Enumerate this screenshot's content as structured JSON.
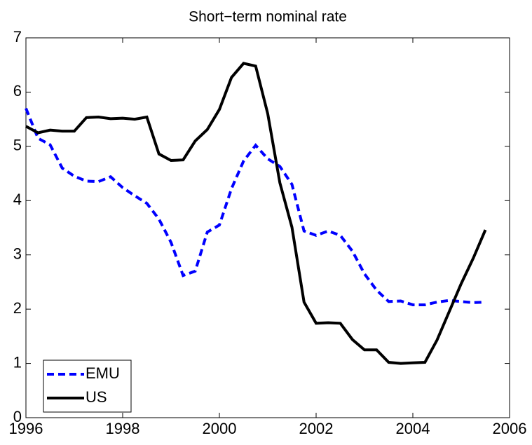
{
  "chart_data": {
    "type": "line",
    "title": "Short−term nominal rate",
    "x": [
      1996,
      1996.25,
      1996.5,
      1996.75,
      1997,
      1997.25,
      1997.5,
      1997.75,
      1998,
      1998.25,
      1998.5,
      1998.75,
      1999,
      1999.25,
      1999.5,
      1999.75,
      2000,
      2000.25,
      2000.5,
      2000.75,
      2001,
      2001.25,
      2001.5,
      2001.75,
      2002,
      2002.25,
      2002.5,
      2002.75,
      2003,
      2003.25,
      2003.5,
      2003.75,
      2004,
      2004.25,
      2004.5,
      2004.75,
      2005,
      2005.25,
      2005.5
    ],
    "series": [
      {
        "name": "EMU",
        "color": "#0000ff",
        "dash": true,
        "values": [
          5.7,
          5.15,
          5.03,
          4.6,
          4.45,
          4.36,
          4.35,
          4.44,
          4.24,
          4.09,
          3.95,
          3.66,
          3.23,
          2.62,
          2.7,
          3.42,
          3.55,
          4.22,
          4.73,
          5.02,
          4.77,
          4.63,
          4.3,
          3.44,
          3.36,
          3.44,
          3.36,
          3.07,
          2.65,
          2.35,
          2.14,
          2.15,
          2.08,
          2.08,
          2.13,
          2.16,
          2.14,
          2.12,
          2.13
        ]
      },
      {
        "name": "US",
        "color": "#000000",
        "dash": false,
        "values": [
          5.37,
          5.25,
          5.3,
          5.28,
          5.28,
          5.53,
          5.54,
          5.51,
          5.52,
          5.5,
          5.54,
          4.86,
          4.74,
          4.75,
          5.1,
          5.31,
          5.68,
          6.27,
          6.53,
          6.48,
          5.6,
          4.33,
          3.51,
          2.13,
          1.74,
          1.75,
          1.74,
          1.44,
          1.25,
          1.25,
          1.02,
          1.0,
          1.01,
          1.02,
          1.43,
          1.95,
          2.47,
          2.94,
          3.46
        ]
      }
    ],
    "xlim": [
      1996,
      2006
    ],
    "xticks": [
      1996,
      1998,
      2000,
      2002,
      2004,
      2006
    ],
    "ylim": [
      0,
      7
    ],
    "yticks": [
      0,
      1,
      2,
      3,
      4,
      5,
      6,
      7
    ],
    "legend": "lower left"
  }
}
